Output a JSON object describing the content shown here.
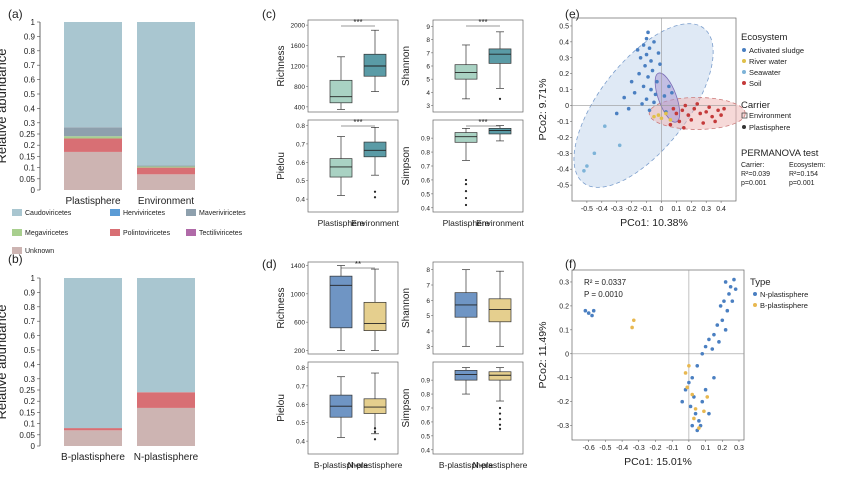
{
  "colors": {
    "caudo": "#a9c6d0",
    "herviv": "#5b9bd5",
    "maveri": "#8ea0ad",
    "megav": "#a8cf8e",
    "polinto": "#d86f74",
    "tectili": "#b06aa8",
    "unknown": "#cdb4b2",
    "plast_box": "#a9d2c3",
    "env_box": "#5a9ba6",
    "b_box": "#6f95c4",
    "n_box": "#e5cf8e",
    "ellipse_blue": "#b9cfe8",
    "ellipse_red": "#eeb9b8",
    "ellipse_purple": "#a99bd4",
    "pt_act": "#4a7fc1",
    "pt_river": "#e0c04a",
    "pt_sea": "#7db3d8",
    "pt_soil": "#c43a3a",
    "pt_n": "#4a7fc1",
    "pt_b": "#e8b850"
  },
  "panels": {
    "a": {
      "label": "(a)"
    },
    "b": {
      "label": "(b)"
    },
    "c": {
      "label": "(c)"
    },
    "d": {
      "label": "(d)"
    },
    "e": {
      "label": "(e)"
    },
    "f": {
      "label": "(f)"
    }
  },
  "legend_a": [
    {
      "label": "Caudoviricetes",
      "color_key": "caudo"
    },
    {
      "label": "Herviviricetes",
      "color_key": "herviv"
    },
    {
      "label": "Maveriviricetes",
      "color_key": "maveri"
    },
    {
      "label": "Megaviricetes",
      "color_key": "megav"
    },
    {
      "label": "Polintoviricetes",
      "color_key": "polinto"
    },
    {
      "label": "Tectiliviricetes",
      "color_key": "tectili"
    },
    {
      "label": "Unknown",
      "color_key": "unknown"
    }
  ],
  "chart_data": [
    {
      "id": "a",
      "type": "bar",
      "stacked": true,
      "ylabel": "Relative abundance",
      "ylim": [
        0,
        1
      ],
      "yticks": [
        "0",
        "0.05",
        "0.1",
        "0.15",
        "0.2",
        "0.25",
        "0.3",
        "0.4",
        "0.5",
        "0.6",
        "0.7",
        "0.8",
        "0.9",
        "1"
      ],
      "categories": [
        "Plastisphere",
        "Environment"
      ],
      "series": [
        {
          "name": "Unknown",
          "values": [
            0.17,
            0.07
          ]
        },
        {
          "name": "Polintoviricetes",
          "values": [
            0.06,
            0.03
          ]
        },
        {
          "name": "Megaviricetes",
          "values": [
            0.01,
            0.005
          ]
        },
        {
          "name": "Maveriviricetes",
          "values": [
            0.04,
            0.005
          ]
        },
        {
          "name": "Caudoviricetes",
          "values": [
            0.72,
            0.89
          ]
        }
      ]
    },
    {
      "id": "b",
      "type": "bar",
      "stacked": true,
      "ylabel": "Relative abundance",
      "ylim": [
        0,
        1
      ],
      "yticks": [
        "0",
        "0.05",
        "0.1",
        "0.15",
        "0.2",
        "0.25",
        "0.3",
        "0.4",
        "0.5",
        "0.6",
        "0.7",
        "0.8",
        "0.9",
        "1"
      ],
      "categories": [
        "B-plastisphere",
        "N-plastisphere"
      ],
      "series": [
        {
          "name": "Unknown",
          "values": [
            0.07,
            0.17
          ]
        },
        {
          "name": "Polintoviricetes",
          "values": [
            0.01,
            0.07
          ]
        },
        {
          "name": "Caudoviricetes",
          "values": [
            0.92,
            0.76
          ]
        }
      ]
    },
    {
      "id": "c",
      "type": "box",
      "categories": [
        "Plastisphere",
        "Environment"
      ],
      "subplots": [
        {
          "ylabel": "Richness",
          "yticks": [
            "400",
            "800",
            "1200",
            "1600",
            "2000"
          ],
          "ylim": [
            300,
            2100
          ],
          "sig": "***",
          "boxes": [
            {
              "min": 350,
              "q1": 480,
              "med": 600,
              "q3": 920,
              "max": 1380
            },
            {
              "min": 700,
              "q1": 1000,
              "med": 1200,
              "q3": 1430,
              "max": 1900
            }
          ],
          "outliers": [
            [],
            []
          ]
        },
        {
          "ylabel": "Shannon",
          "yticks": [
            "3",
            "4",
            "5",
            "6",
            "7",
            "8",
            "9"
          ],
          "ylim": [
            2.5,
            9.5
          ],
          "sig": "***",
          "boxes": [
            {
              "min": 3.5,
              "q1": 5.0,
              "med": 5.5,
              "q3": 6.1,
              "max": 7.6
            },
            {
              "min": 4.3,
              "q1": 6.2,
              "med": 6.9,
              "q3": 7.3,
              "max": 8.6
            }
          ],
          "outliers": [
            [],
            [
              3.5
            ]
          ]
        },
        {
          "ylabel": "Pielou",
          "yticks": [
            "0.4",
            "0.5",
            "0.6",
            "0.7",
            "0.8"
          ],
          "ylim": [
            0.33,
            0.83
          ],
          "sig": "***",
          "boxes": [
            {
              "min": 0.42,
              "q1": 0.52,
              "med": 0.575,
              "q3": 0.62,
              "max": 0.74
            },
            {
              "min": 0.53,
              "q1": 0.63,
              "med": 0.665,
              "q3": 0.71,
              "max": 0.79
            }
          ],
          "outliers": [
            [],
            [
              0.41,
              0.44
            ]
          ]
        },
        {
          "ylabel": "Simpson",
          "yticks": [
            "0.4",
            "0.5",
            "0.6",
            "0.7",
            "0.8",
            "0.9"
          ],
          "ylim": [
            0.37,
            1.03
          ],
          "sig": "***",
          "boxes": [
            {
              "min": 0.74,
              "q1": 0.87,
              "med": 0.91,
              "q3": 0.94,
              "max": 0.97
            },
            {
              "min": 0.88,
              "q1": 0.93,
              "med": 0.955,
              "q3": 0.97,
              "max": 0.99
            }
          ],
          "outliers": [
            [
              0.6,
              0.57,
              0.52,
              0.47,
              0.42
            ],
            []
          ]
        }
      ]
    },
    {
      "id": "d",
      "type": "box",
      "categories": [
        "B-plastisphere",
        "N-plastisphere"
      ],
      "subplots": [
        {
          "ylabel": "Richness",
          "yticks": [
            "200",
            "600",
            "1000",
            "1400"
          ],
          "ylim": [
            150,
            1450
          ],
          "sig": "**",
          "boxes": [
            {
              "min": 200,
              "q1": 520,
              "med": 1120,
              "q3": 1250,
              "max": 1400
            },
            {
              "min": 200,
              "q1": 480,
              "med": 580,
              "q3": 880,
              "max": 1350
            }
          ],
          "outliers": [
            [],
            []
          ]
        },
        {
          "ylabel": "Shannon",
          "yticks": [
            "3",
            "4",
            "5",
            "6",
            "7",
            "8"
          ],
          "ylim": [
            2.5,
            8.5
          ],
          "sig": "",
          "boxes": [
            {
              "min": 3.0,
              "q1": 4.9,
              "med": 5.7,
              "q3": 6.5,
              "max": 8.0
            },
            {
              "min": 3.0,
              "q1": 4.6,
              "med": 5.4,
              "q3": 6.1,
              "max": 7.9
            }
          ],
          "outliers": [
            [],
            []
          ]
        },
        {
          "ylabel": "Pielou",
          "yticks": [
            "0.4",
            "0.5",
            "0.6",
            "0.7",
            "0.8"
          ],
          "ylim": [
            0.33,
            0.83
          ],
          "sig": "",
          "boxes": [
            {
              "min": 0.42,
              "q1": 0.53,
              "med": 0.59,
              "q3": 0.65,
              "max": 0.75
            },
            {
              "min": 0.44,
              "q1": 0.55,
              "med": 0.585,
              "q3": 0.63,
              "max": 0.77
            }
          ],
          "outliers": [
            [],
            [
              0.47,
              0.45,
              0.41
            ]
          ]
        },
        {
          "ylabel": "Simpson",
          "yticks": [
            "0.4",
            "0.5",
            "0.6",
            "0.7",
            "0.8",
            "0.9"
          ],
          "ylim": [
            0.37,
            1.03
          ],
          "sig": "",
          "boxes": [
            {
              "min": 0.8,
              "q1": 0.9,
              "med": 0.94,
              "q3": 0.97,
              "max": 0.99
            },
            {
              "min": 0.75,
              "q1": 0.9,
              "med": 0.935,
              "q3": 0.96,
              "max": 0.99
            }
          ],
          "outliers": [
            [],
            [
              0.7,
              0.66,
              0.62,
              0.58,
              0.55
            ]
          ]
        }
      ]
    },
    {
      "id": "e",
      "type": "scatter",
      "xlabel": "PCo1: 10.38%",
      "ylabel": "PCo2: 9.71%",
      "xlim": [
        -0.6,
        0.5
      ],
      "ylim": [
        -0.6,
        0.55
      ],
      "xticks": [
        "-0.5",
        "-0.4",
        "-0.3",
        "-0.2",
        "-0.1",
        "0",
        "0.1",
        "0.2",
        "0.3",
        "0.4"
      ],
      "yticks": [
        "-0.5",
        "-0.4",
        "-0.3",
        "-0.2",
        "-0.1",
        "0",
        "0.1",
        "0.2",
        "0.3",
        "0.4",
        "0.5"
      ],
      "legend_title": "Ecosystem",
      "series": [
        {
          "name": "Activated sludge",
          "color_key": "pt_act"
        },
        {
          "name": "River water",
          "color_key": "pt_river"
        },
        {
          "name": "Seawater",
          "color_key": "pt_sea"
        },
        {
          "name": "Soil",
          "color_key": "pt_soil"
        }
      ],
      "carrier_title": "Carrier",
      "carrier": [
        "Environment",
        "Plastisphere"
      ],
      "permanova": {
        "title": "PERMANOVA test",
        "carrier_label": "Carrier:",
        "carrier_r2": "R²=0.039",
        "carrier_p": "p=0.001",
        "eco_label": "Ecosystem:",
        "eco_r2": "R²=0.154",
        "eco_p": "p=0.001"
      },
      "points": [
        {
          "s": 0,
          "pts": [
            [
              -0.1,
              0.42
            ],
            [
              -0.12,
              0.38
            ],
            [
              -0.08,
              0.36
            ],
            [
              -0.05,
              0.4
            ],
            [
              -0.1,
              0.32
            ],
            [
              -0.14,
              0.3
            ],
            [
              -0.07,
              0.28
            ],
            [
              -0.02,
              0.33
            ],
            [
              -0.11,
              0.25
            ],
            [
              -0.06,
              0.22
            ],
            [
              -0.15,
              0.2
            ],
            [
              -0.09,
              0.18
            ],
            [
              -0.03,
              0.15
            ],
            [
              -0.12,
              0.12
            ],
            [
              -0.07,
              0.1
            ],
            [
              -0.04,
              0.07
            ],
            [
              -0.18,
              0.08
            ],
            [
              -0.1,
              0.04
            ],
            [
              -0.05,
              0.02
            ],
            [
              0.02,
              0.06
            ],
            [
              0.05,
              0.12
            ],
            [
              0.07,
              0.08
            ],
            [
              -0.2,
              0.15
            ],
            [
              -0.25,
              0.05
            ],
            [
              -0.3,
              -0.05
            ],
            [
              -0.22,
              -0.02
            ],
            [
              -0.08,
              -0.03
            ],
            [
              0.03,
              -0.04
            ],
            [
              -0.13,
              0.01
            ],
            [
              -0.01,
              0.26
            ],
            [
              -0.09,
              0.46
            ],
            [
              -0.16,
              0.35
            ]
          ]
        },
        {
          "s": 1,
          "pts": [
            [
              -0.02,
              -0.06
            ],
            [
              0.0,
              -0.08
            ],
            [
              0.03,
              -0.05
            ],
            [
              -0.05,
              -0.07
            ],
            [
              0.06,
              -0.09
            ]
          ]
        },
        {
          "s": 2,
          "pts": [
            [
              -0.5,
              -0.38
            ],
            [
              -0.52,
              -0.41
            ],
            [
              -0.28,
              -0.25
            ],
            [
              -0.38,
              -0.13
            ],
            [
              -0.45,
              -0.3
            ]
          ]
        },
        {
          "s": 3,
          "pts": [
            [
              0.1,
              -0.05
            ],
            [
              0.14,
              -0.03
            ],
            [
              0.18,
              -0.06
            ],
            [
              0.22,
              -0.02
            ],
            [
              0.26,
              -0.05
            ],
            [
              0.3,
              -0.04
            ],
            [
              0.34,
              -0.07
            ],
            [
              0.38,
              -0.03
            ],
            [
              0.12,
              -0.1
            ],
            [
              0.2,
              -0.09
            ],
            [
              0.28,
              -0.11
            ],
            [
              0.36,
              -0.1
            ],
            [
              0.16,
              0.0
            ],
            [
              0.24,
              0.01
            ],
            [
              0.32,
              -0.01
            ],
            [
              0.4,
              -0.06
            ],
            [
              0.08,
              -0.02
            ],
            [
              0.42,
              -0.02
            ],
            [
              0.06,
              -0.12
            ],
            [
              0.15,
              -0.14
            ]
          ]
        }
      ]
    },
    {
      "id": "f",
      "type": "scatter",
      "xlabel": "PCo1: 15.01%",
      "ylabel": "PCo2: 11.49%",
      "xlim": [
        -0.7,
        0.33
      ],
      "ylim": [
        -0.36,
        0.35
      ],
      "xticks": [
        "-0.6",
        "-0.5",
        "-0.4",
        "-0.3",
        "-0.2",
        "-0.1",
        "0",
        "0.1",
        "0.2",
        "0.3"
      ],
      "yticks": [
        "-0.3",
        "-0.2",
        "-0.1",
        "0",
        "0.1",
        "0.2",
        "0.3"
      ],
      "stats": [
        "R² = 0.0337",
        "P = 0.0010"
      ],
      "legend_title": "Type",
      "series": [
        {
          "name": "N-plastisphere",
          "color_key": "pt_n"
        },
        {
          "name": "B-plastisphere",
          "color_key": "pt_b"
        }
      ],
      "points": [
        {
          "s": 0,
          "pts": [
            [
              -0.62,
              0.18
            ],
            [
              -0.6,
              0.17
            ],
            [
              -0.57,
              0.18
            ],
            [
              -0.58,
              0.16
            ],
            [
              0.22,
              0.3
            ],
            [
              0.25,
              0.28
            ],
            [
              0.27,
              0.31
            ],
            [
              0.24,
              0.25
            ],
            [
              0.21,
              0.22
            ],
            [
              0.28,
              0.27
            ],
            [
              0.19,
              0.2
            ],
            [
              0.26,
              0.22
            ],
            [
              0.23,
              0.18
            ],
            [
              0.2,
              0.14
            ],
            [
              0.17,
              0.12
            ],
            [
              0.22,
              0.1
            ],
            [
              0.15,
              0.08
            ],
            [
              0.12,
              0.06
            ],
            [
              0.18,
              0.05
            ],
            [
              0.1,
              0.03
            ],
            [
              0.14,
              0.02
            ],
            [
              0.08,
              0.0
            ],
            [
              0.05,
              -0.05
            ],
            [
              0.02,
              -0.1
            ],
            [
              0.0,
              -0.12
            ],
            [
              -0.02,
              -0.15
            ],
            [
              0.03,
              -0.18
            ],
            [
              0.01,
              -0.22
            ],
            [
              0.04,
              -0.25
            ],
            [
              0.06,
              -0.28
            ],
            [
              0.02,
              -0.3
            ],
            [
              0.05,
              -0.32
            ],
            [
              0.08,
              -0.2
            ],
            [
              0.1,
              -0.15
            ],
            [
              0.12,
              -0.25
            ],
            [
              0.15,
              -0.1
            ],
            [
              -0.04,
              -0.2
            ],
            [
              0.07,
              -0.3
            ]
          ]
        },
        {
          "s": 1,
          "pts": [
            [
              -0.33,
              0.14
            ],
            [
              -0.34,
              0.11
            ],
            [
              -0.02,
              -0.08
            ],
            [
              -0.01,
              -0.14
            ],
            [
              0.02,
              -0.17
            ],
            [
              0.04,
              -0.23
            ],
            [
              0.06,
              -0.31
            ],
            [
              0.03,
              -0.27
            ],
            [
              0.09,
              -0.24
            ],
            [
              0.11,
              -0.18
            ],
            [
              0.0,
              -0.05
            ]
          ]
        }
      ]
    }
  ]
}
